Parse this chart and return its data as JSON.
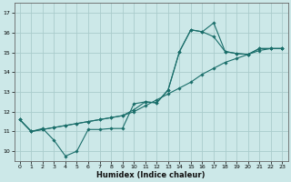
{
  "xlabel": "Humidex (Indice chaleur)",
  "bg_color": "#cce8e8",
  "grid_color": "#aacccc",
  "line_color": "#1a6e6a",
  "xmin": -0.5,
  "xmax": 23.5,
  "ymin": 9.5,
  "ymax": 17.5,
  "yticks": [
    10,
    11,
    12,
    13,
    14,
    15,
    16,
    17
  ],
  "xticks": [
    0,
    1,
    2,
    3,
    4,
    5,
    6,
    7,
    8,
    9,
    10,
    11,
    12,
    13,
    14,
    15,
    16,
    17,
    18,
    19,
    20,
    21,
    22,
    23
  ],
  "line1_x": [
    0,
    1,
    2,
    3,
    4,
    5,
    6,
    7,
    8,
    9,
    10,
    11,
    12,
    13,
    14,
    15,
    16,
    17,
    18,
    19,
    20,
    21,
    22,
    23
  ],
  "line1_y": [
    11.6,
    11.0,
    11.15,
    10.55,
    9.75,
    10.0,
    11.1,
    11.1,
    11.15,
    11.15,
    12.4,
    12.5,
    12.45,
    13.1,
    15.05,
    16.15,
    16.05,
    16.5,
    15.05,
    14.95,
    14.9,
    15.2,
    15.2,
    15.2
  ],
  "line2_x": [
    0,
    1,
    2,
    3,
    4,
    5,
    6,
    7,
    8,
    9,
    10,
    11,
    12,
    13,
    14,
    15,
    16,
    17,
    18,
    19,
    20,
    21,
    22,
    23
  ],
  "line2_y": [
    11.6,
    11.0,
    11.1,
    11.2,
    11.3,
    11.4,
    11.5,
    11.6,
    11.7,
    11.8,
    12.0,
    12.3,
    12.6,
    12.9,
    13.2,
    13.5,
    13.9,
    14.2,
    14.5,
    14.7,
    14.9,
    15.1,
    15.2,
    15.2
  ],
  "line3_x": [
    0,
    1,
    2,
    3,
    4,
    5,
    6,
    7,
    8,
    9,
    10,
    11,
    12,
    13,
    14,
    15,
    16,
    17,
    18,
    19,
    20,
    21,
    22,
    23
  ],
  "line3_y": [
    11.6,
    11.0,
    11.1,
    11.2,
    11.3,
    11.4,
    11.5,
    11.6,
    11.7,
    11.8,
    12.1,
    12.5,
    12.45,
    13.1,
    15.05,
    16.15,
    16.05,
    15.8,
    15.05,
    14.95,
    14.9,
    15.2,
    15.2,
    15.2
  ]
}
